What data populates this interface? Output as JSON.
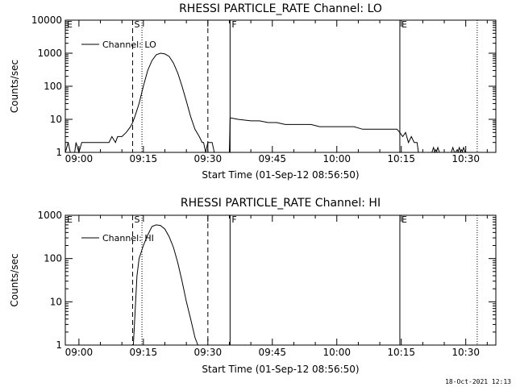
{
  "footer": {
    "timestamp": "18-Oct-2021 12:13"
  },
  "chart_data": [
    {
      "type": "line",
      "title": "RHESSI PARTICLE_RATE Channel: LO",
      "xlabel": "Start Time (01-Sep-12 08:56:50)",
      "ylabel": "Counts/sec",
      "yscale": "log",
      "ylim": [
        1,
        10000
      ],
      "xlim": [
        "08:56:50",
        "10:37:00"
      ],
      "xticks": [
        "09:00",
        "09:15",
        "09:30",
        "09:45",
        "10:00",
        "10:15",
        "10:30"
      ],
      "yticks": [
        "1",
        "10",
        "100",
        "1000",
        "10000"
      ],
      "legend": {
        "label": "Channel: LO",
        "placement": "top-left"
      },
      "markers": [
        {
          "label": "E",
          "time": "08:56:50",
          "style": "solid"
        },
        {
          "label": "S",
          "time": "09:12:30",
          "style": "dashed"
        },
        {
          "label": "",
          "time": "09:14:40",
          "style": "dotted"
        },
        {
          "label": "",
          "time": "09:30:00",
          "style": "dashed"
        },
        {
          "label": "F",
          "time": "09:35:10",
          "style": "solid"
        },
        {
          "label": "E",
          "time": "10:14:40",
          "style": "solid"
        },
        {
          "label": "",
          "time": "10:32:40",
          "style": "dotted"
        }
      ],
      "series": [
        {
          "x": [
            "08:56:50",
            "08:57:30",
            "08:58:00",
            "08:59:00",
            "08:59:20",
            "09:00:00",
            "09:00:40",
            "09:01:00",
            "09:02:00",
            "09:03:00",
            "09:04:00",
            "09:05:00",
            "09:06:00",
            "09:07:00",
            "09:07:40",
            "09:08:30",
            "09:09:00",
            "09:10:00",
            "09:11:00",
            "09:12:00",
            "09:12:30",
            "09:13:00",
            "09:14:00",
            "09:15:00",
            "09:16:00",
            "09:17:00",
            "09:18:00",
            "09:19:00",
            "09:20:00",
            "09:21:00",
            "09:22:00",
            "09:23:00",
            "09:24:00",
            "09:25:00",
            "09:26:00",
            "09:27:00",
            "09:28:00",
            "09:28:40",
            "09:29:00",
            "09:29:30",
            "09:30:00",
            "09:30:30",
            "09:31:00",
            "09:31:30",
            "09:32:00",
            "09:33:00",
            "09:34:00",
            "09:35:00",
            "09:35:10",
            "09:35:20",
            "09:37:00",
            "09:40:00",
            "09:42:00",
            "09:44:00",
            "09:46:00",
            "09:48:00",
            "09:50:00",
            "09:52:00",
            "09:54:00",
            "09:56:00",
            "09:58:00",
            "10:00:00",
            "10:02:00",
            "10:04:00",
            "10:06:00",
            "10:08:00",
            "10:10:00",
            "10:12:00",
            "10:14:00",
            "10:14:40",
            "10:15:20",
            "10:16:00",
            "10:16:40",
            "10:17:20",
            "10:18:00",
            "10:18:40",
            "10:19:00"
          ],
          "y": [
            1,
            2,
            1,
            1,
            2,
            1,
            2,
            2,
            2,
            2,
            2,
            2,
            2,
            2,
            3,
            2,
            3,
            3,
            4,
            6,
            8,
            12,
            30,
            100,
            300,
            600,
            900,
            1000,
            950,
            800,
            500,
            250,
            100,
            35,
            12,
            5,
            3,
            2,
            2,
            1,
            2,
            2,
            2,
            1,
            1,
            1,
            1,
            1,
            11,
            11,
            10,
            9,
            9,
            8,
            8,
            7,
            7,
            7,
            7,
            6,
            6,
            6,
            6,
            6,
            5,
            5,
            5,
            5,
            5,
            4,
            3,
            4,
            2,
            3,
            2,
            2,
            1
          ]
        }
      ],
      "scatter_points": {
        "x": [
          "10:22:30",
          "10:23:00",
          "10:23:30",
          "10:27:00",
          "10:28:00",
          "10:28:30",
          "10:29:00",
          "10:29:30"
        ],
        "y": [
          1.4,
          1.2,
          1.4,
          1.4,
          1.2,
          1.4,
          1.2,
          1.4
        ]
      }
    },
    {
      "type": "line",
      "title": "RHESSI PARTICLE_RATE Channel: HI",
      "xlabel": "Start Time (01-Sep-12 08:56:50)",
      "ylabel": "Counts/sec",
      "yscale": "log",
      "ylim": [
        1,
        1000
      ],
      "xlim": [
        "08:56:50",
        "10:37:00"
      ],
      "xticks": [
        "09:00",
        "09:15",
        "09:30",
        "09:45",
        "10:00",
        "10:15",
        "10:30"
      ],
      "yticks": [
        "1",
        "10",
        "100",
        "1000"
      ],
      "legend": {
        "label": "Channel: HI",
        "placement": "top-left"
      },
      "markers": [
        {
          "label": "E",
          "time": "08:56:50",
          "style": "solid"
        },
        {
          "label": "S",
          "time": "09:12:30",
          "style": "dashed"
        },
        {
          "label": "",
          "time": "09:14:40",
          "style": "dotted"
        },
        {
          "label": "",
          "time": "09:30:00",
          "style": "dashed"
        },
        {
          "label": "F",
          "time": "09:35:10",
          "style": "solid"
        },
        {
          "label": "E",
          "time": "10:14:40",
          "style": "solid"
        },
        {
          "label": "",
          "time": "10:32:40",
          "style": "dotted"
        }
      ],
      "series": [
        {
          "x": [
            "09:12:40",
            "09:13:30",
            "09:14:00",
            "09:15:00",
            "09:16:00",
            "09:17:00",
            "09:18:00",
            "09:19:00",
            "09:20:00",
            "09:21:00",
            "09:22:00",
            "09:23:00",
            "09:24:00",
            "09:25:00",
            "09:26:00",
            "09:27:00",
            "09:27:40"
          ],
          "y": [
            1,
            40,
            100,
            200,
            350,
            550,
            600,
            580,
            480,
            320,
            180,
            80,
            30,
            10,
            4,
            1.5,
            1
          ]
        }
      ]
    }
  ]
}
